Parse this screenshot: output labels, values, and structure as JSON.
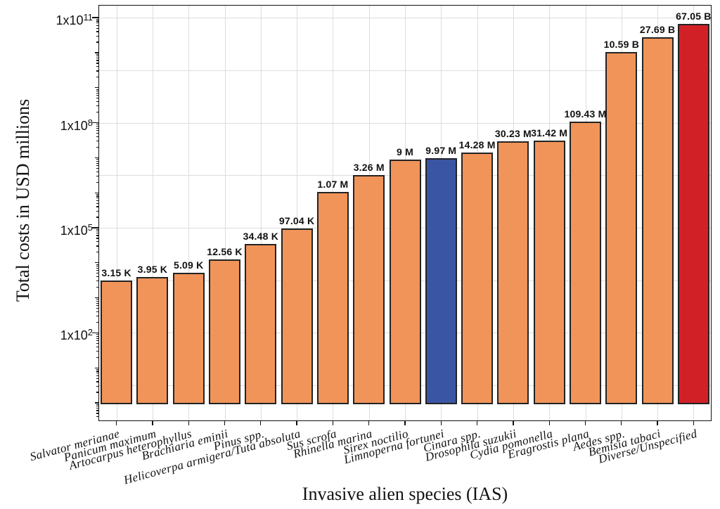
{
  "chart_data": {
    "type": "bar",
    "title": "",
    "xlabel": "Invasive alien species (IAS)",
    "ylabel": "Total costs in USD millions",
    "y_scale": "log",
    "ylim_log10": [
      -0.55,
      11.36
    ],
    "bar_baseline": 1,
    "grid": true,
    "legend": "none",
    "yticks": [
      {
        "base": "1x10",
        "exp": "11",
        "log": 11
      },
      {
        "base": "1x10",
        "exp": "8",
        "log": 8
      },
      {
        "base": "1x10",
        "exp": "5",
        "log": 5
      },
      {
        "base": "1x10",
        "exp": "2",
        "log": 2
      }
    ],
    "grid_logs": [
      0.5,
      2,
      3.5,
      5,
      6.5,
      8,
      9.5,
      11
    ],
    "categories": [
      "Salvator merianae",
      "Panicum maximum",
      "Artocarpus heterophyllus",
      "Brachiaria eminii",
      "Pinus spp.",
      "Helicoverpa armigera/Tuta absoluta",
      "Sus scrofa",
      "Rhinella marina",
      "Sirex noctilio",
      "Limnoperna fortunei",
      "Cinara spp.",
      "Drosophila suzukii",
      "Cydia pomonella",
      "Eragrostis plana",
      "Aedes spp.",
      "Bemisia tabaci",
      "Diverse/Unspecified"
    ],
    "values": [
      3150,
      3950,
      5090,
      12560,
      34480,
      97040,
      1070000,
      3260000,
      9000000,
      9970000,
      14280000,
      30230000,
      31420000,
      109430000,
      10590000000,
      27690000000,
      67050000000
    ],
    "value_labels": [
      "3.15 K",
      "3.95 K",
      "5.09 K",
      "12.56 K",
      "34.48 K",
      "97.04 K",
      "1.07 M",
      "3.26 M",
      "9 M",
      "9.97 M",
      "14.28 M",
      "30.23 M",
      "31.42 M",
      "109.43 M",
      "10.59 B",
      "27.69 B",
      "67.05 B"
    ],
    "color_keys": [
      "orange",
      "orange",
      "orange",
      "orange",
      "orange",
      "orange",
      "orange",
      "orange",
      "orange",
      "blue",
      "orange",
      "orange",
      "orange",
      "orange",
      "orange",
      "orange",
      "red"
    ],
    "palette": {
      "orange": "#F0945A",
      "blue": "#3B55A5",
      "red": "#D22027",
      "outline": "#232323",
      "grid": "#DCDCDC",
      "axis": "#111111",
      "text": "#111111"
    }
  }
}
